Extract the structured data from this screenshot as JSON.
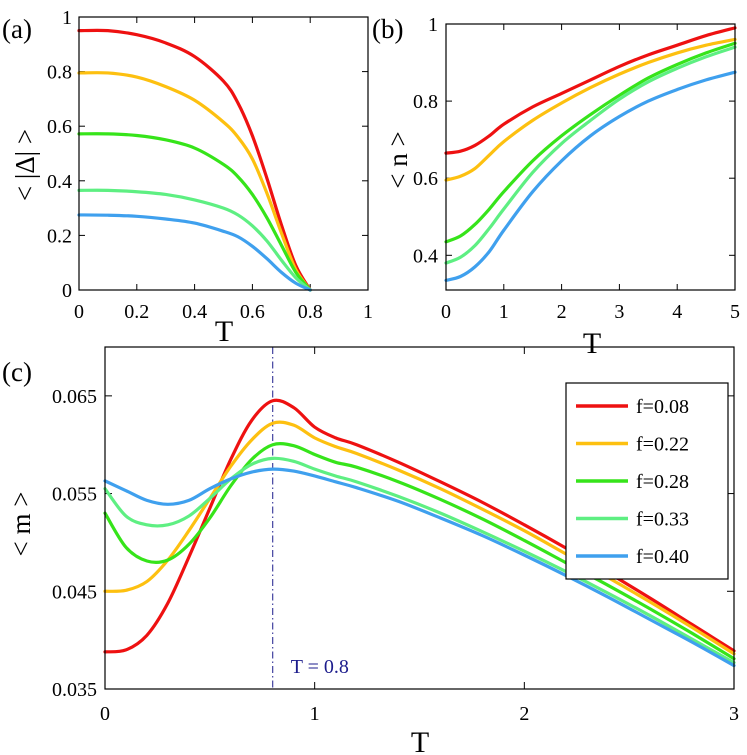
{
  "series_colors": [
    "#ee1111",
    "#fdc010",
    "#36e41a",
    "#5eef82",
    "#3fa0ee"
  ],
  "chart_data": [
    {
      "panel": "a",
      "panel_label": "(a)",
      "type": "line",
      "xlabel": "T",
      "ylabel": "< |Δ| >",
      "xlim": [
        0,
        1
      ],
      "ylim": [
        0,
        1
      ],
      "xticks": [
        0,
        0.2,
        0.4,
        0.6,
        0.8,
        1
      ],
      "xtick_labels": [
        "0",
        "0.2",
        "0.4",
        "0.6",
        "0.8",
        "1"
      ],
      "yticks": [
        0,
        0.2,
        0.4,
        0.6,
        0.8,
        1
      ],
      "ytick_labels": [
        "0",
        "0.2",
        "0.4",
        "0.6",
        "0.8",
        "1"
      ],
      "series": [
        {
          "name": "f=0.08",
          "x": [
            0,
            0.1,
            0.2,
            0.3,
            0.4,
            0.5,
            0.55,
            0.6,
            0.65,
            0.7,
            0.75,
            0.8
          ],
          "y": [
            0.95,
            0.95,
            0.935,
            0.905,
            0.855,
            0.765,
            0.685,
            0.565,
            0.41,
            0.24,
            0.09,
            0.0
          ]
        },
        {
          "name": "f=0.22",
          "x": [
            0,
            0.1,
            0.2,
            0.3,
            0.4,
            0.5,
            0.55,
            0.6,
            0.65,
            0.7,
            0.75,
            0.8
          ],
          "y": [
            0.795,
            0.795,
            0.78,
            0.745,
            0.695,
            0.615,
            0.56,
            0.48,
            0.355,
            0.21,
            0.075,
            0.0
          ]
        },
        {
          "name": "f=0.28",
          "x": [
            0,
            0.1,
            0.2,
            0.3,
            0.4,
            0.5,
            0.55,
            0.6,
            0.65,
            0.7,
            0.75,
            0.8
          ],
          "y": [
            0.572,
            0.572,
            0.566,
            0.55,
            0.52,
            0.46,
            0.415,
            0.35,
            0.265,
            0.165,
            0.065,
            0.0
          ]
        },
        {
          "name": "f=0.33",
          "x": [
            0,
            0.1,
            0.2,
            0.3,
            0.4,
            0.5,
            0.55,
            0.6,
            0.65,
            0.7,
            0.75,
            0.8
          ],
          "y": [
            0.365,
            0.365,
            0.36,
            0.35,
            0.33,
            0.3,
            0.275,
            0.235,
            0.18,
            0.11,
            0.045,
            0.0
          ]
        },
        {
          "name": "f=0.40",
          "x": [
            0,
            0.1,
            0.2,
            0.3,
            0.4,
            0.5,
            0.55,
            0.6,
            0.65,
            0.7,
            0.75,
            0.8
          ],
          "y": [
            0.275,
            0.274,
            0.27,
            0.26,
            0.245,
            0.215,
            0.195,
            0.16,
            0.115,
            0.065,
            0.025,
            0.0
          ]
        }
      ]
    },
    {
      "panel": "b",
      "panel_label": "(b)",
      "type": "line",
      "xlabel": "T",
      "ylabel": "< n >",
      "xlim": [
        0,
        5
      ],
      "ylim": [
        0.31,
        1
      ],
      "xticks": [
        0,
        1,
        2,
        3,
        4,
        5
      ],
      "xtick_labels": [
        "0",
        "1",
        "2",
        "3",
        "4",
        "5"
      ],
      "yticks": [
        0.4,
        0.6,
        0.8,
        1
      ],
      "ytick_labels": [
        "0.4",
        "0.6",
        "0.8",
        "1"
      ],
      "series": [
        {
          "name": "f=0.08",
          "x": [
            0,
            0.25,
            0.5,
            0.75,
            1,
            1.5,
            2,
            2.5,
            3,
            3.5,
            4,
            4.5,
            5
          ],
          "y": [
            0.665,
            0.67,
            0.685,
            0.71,
            0.74,
            0.785,
            0.82,
            0.855,
            0.89,
            0.92,
            0.945,
            0.97,
            0.99
          ]
        },
        {
          "name": "f=0.22",
          "x": [
            0,
            0.25,
            0.5,
            0.75,
            1,
            1.5,
            2,
            2.5,
            3,
            3.5,
            4,
            4.5,
            5
          ],
          "y": [
            0.595,
            0.605,
            0.625,
            0.66,
            0.695,
            0.75,
            0.795,
            0.835,
            0.87,
            0.9,
            0.925,
            0.945,
            0.96
          ]
        },
        {
          "name": "f=0.28",
          "x": [
            0,
            0.25,
            0.5,
            0.75,
            1,
            1.5,
            2,
            2.5,
            3,
            3.5,
            4,
            4.5,
            5
          ],
          "y": [
            0.435,
            0.45,
            0.48,
            0.52,
            0.565,
            0.645,
            0.71,
            0.765,
            0.815,
            0.86,
            0.895,
            0.925,
            0.95
          ]
        },
        {
          "name": "f=0.33",
          "x": [
            0,
            0.25,
            0.5,
            0.75,
            1,
            1.5,
            2,
            2.5,
            3,
            3.5,
            4,
            4.5,
            5
          ],
          "y": [
            0.38,
            0.395,
            0.425,
            0.47,
            0.52,
            0.615,
            0.69,
            0.75,
            0.805,
            0.85,
            0.885,
            0.915,
            0.94
          ]
        },
        {
          "name": "f=0.40",
          "x": [
            0,
            0.25,
            0.5,
            0.75,
            1,
            1.5,
            2,
            2.5,
            3,
            3.5,
            4,
            4.5,
            5
          ],
          "y": [
            0.335,
            0.345,
            0.37,
            0.41,
            0.465,
            0.565,
            0.645,
            0.71,
            0.76,
            0.8,
            0.83,
            0.855,
            0.875
          ]
        }
      ]
    },
    {
      "panel": "c",
      "panel_label": "(c)",
      "type": "line",
      "xlabel": "T",
      "ylabel": "< m >",
      "xlim": [
        0,
        3
      ],
      "ylim": [
        0.035,
        0.07
      ],
      "xticks": [
        0,
        1,
        2,
        3
      ],
      "xtick_labels": [
        "0",
        "1",
        "2",
        "3"
      ],
      "yticks": [
        0.035,
        0.045,
        0.055,
        0.065
      ],
      "ytick_labels": [
        "0.035",
        "0.045",
        "0.055",
        "0.065"
      ],
      "vline": {
        "x": 0.8,
        "label": "T = 0.8",
        "color": "#1c1c8c"
      },
      "legend_position": "top-right",
      "series": [
        {
          "name": "f=0.08",
          "x": [
            0,
            0.1,
            0.2,
            0.3,
            0.4,
            0.5,
            0.6,
            0.7,
            0.8,
            0.9,
            1.0,
            1.1,
            1.2,
            1.4,
            1.6,
            1.8,
            2.0,
            2.2,
            2.4,
            2.6,
            2.8,
            3.0
          ],
          "y": [
            0.0388,
            0.039,
            0.0405,
            0.0438,
            0.0485,
            0.0535,
            0.0585,
            0.0625,
            0.0645,
            0.0638,
            0.0618,
            0.0607,
            0.06,
            0.0582,
            0.0562,
            0.0541,
            0.0518,
            0.0494,
            0.0469,
            0.0443,
            0.0416,
            0.0389
          ]
        },
        {
          "name": "f=0.22",
          "x": [
            0,
            0.1,
            0.2,
            0.3,
            0.4,
            0.5,
            0.6,
            0.7,
            0.8,
            0.9,
            1.0,
            1.1,
            1.2,
            1.4,
            1.6,
            1.8,
            2.0,
            2.2,
            2.4,
            2.6,
            2.8,
            3.0
          ],
          "y": [
            0.045,
            0.0451,
            0.046,
            0.0482,
            0.0512,
            0.0545,
            0.0578,
            0.0605,
            0.0622,
            0.062,
            0.0607,
            0.0598,
            0.0591,
            0.0574,
            0.0555,
            0.0534,
            0.0512,
            0.0488,
            0.0464,
            0.0439,
            0.0413,
            0.0386
          ]
        },
        {
          "name": "f=0.28",
          "x": [
            0,
            0.1,
            0.2,
            0.3,
            0.4,
            0.5,
            0.6,
            0.7,
            0.8,
            0.9,
            1.0,
            1.1,
            1.2,
            1.4,
            1.6,
            1.8,
            2.0,
            2.2,
            2.4,
            2.6,
            2.8,
            3.0
          ],
          "y": [
            0.053,
            0.0495,
            0.0481,
            0.0482,
            0.0498,
            0.0525,
            0.0558,
            0.0585,
            0.06,
            0.0599,
            0.059,
            0.0582,
            0.0577,
            0.0562,
            0.0544,
            0.0524,
            0.0502,
            0.0479,
            0.0456,
            0.0432,
            0.0407,
            0.0381
          ]
        },
        {
          "name": "f=0.33",
          "x": [
            0,
            0.1,
            0.2,
            0.3,
            0.4,
            0.5,
            0.6,
            0.7,
            0.8,
            0.9,
            1.0,
            1.1,
            1.2,
            1.4,
            1.6,
            1.8,
            2.0,
            2.2,
            2.4,
            2.6,
            2.8,
            3.0
          ],
          "y": [
            0.0555,
            0.0527,
            0.0518,
            0.0518,
            0.0527,
            0.0545,
            0.0565,
            0.058,
            0.0586,
            0.0583,
            0.0575,
            0.0568,
            0.0562,
            0.0547,
            0.053,
            0.0511,
            0.0491,
            0.047,
            0.0448,
            0.0425,
            0.0401,
            0.0377
          ]
        },
        {
          "name": "f=0.40",
          "x": [
            0,
            0.1,
            0.2,
            0.3,
            0.4,
            0.5,
            0.6,
            0.7,
            0.8,
            0.9,
            1.0,
            1.1,
            1.2,
            1.4,
            1.6,
            1.8,
            2.0,
            2.2,
            2.4,
            2.6,
            2.8,
            3.0
          ],
          "y": [
            0.0563,
            0.0553,
            0.0543,
            0.0539,
            0.0543,
            0.0555,
            0.0565,
            0.0572,
            0.0575,
            0.0573,
            0.0568,
            0.0562,
            0.0556,
            0.0542,
            0.0525,
            0.0507,
            0.0487,
            0.0466,
            0.0444,
            0.0421,
            0.0398,
            0.0374
          ]
        }
      ]
    }
  ]
}
